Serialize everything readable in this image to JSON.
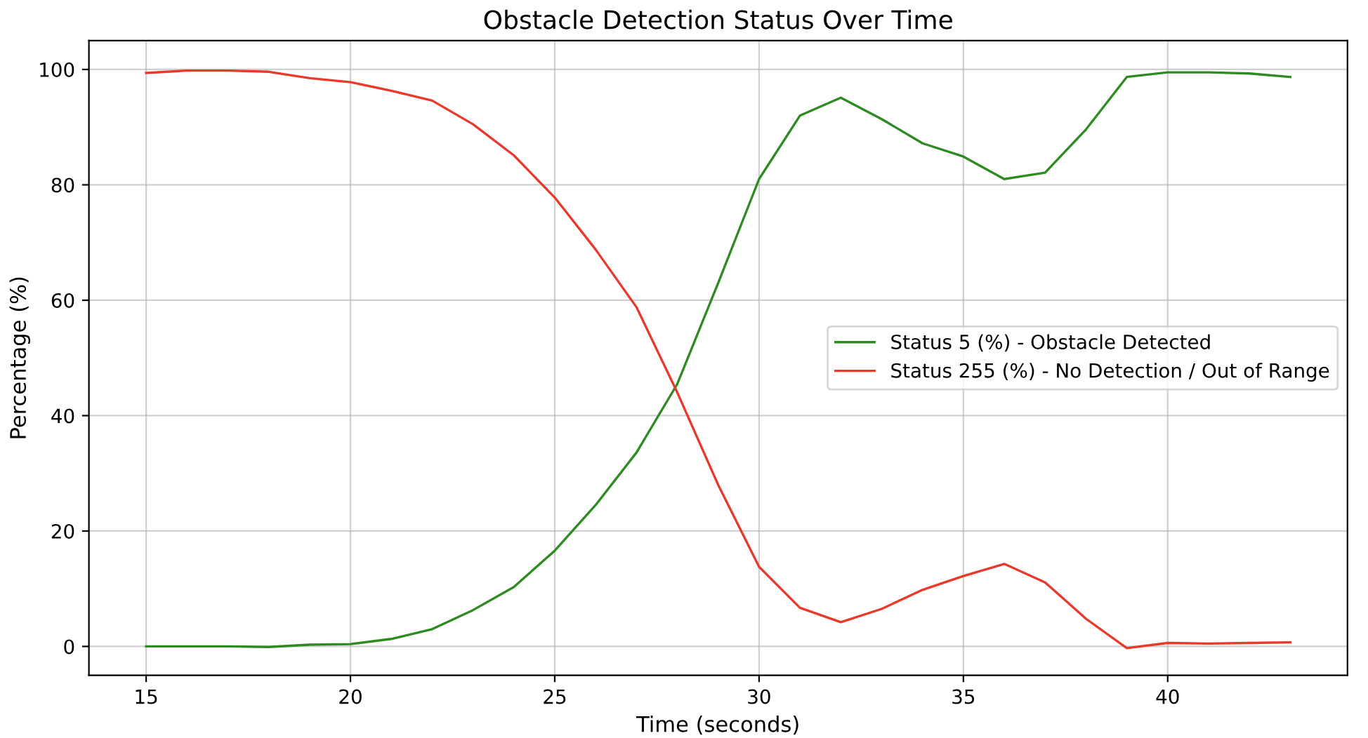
{
  "chart_data": {
    "type": "line",
    "title": "Obstacle Detection Status Over Time",
    "xlabel": "Time (seconds)",
    "ylabel": "Percentage (%)",
    "x": [
      15,
      16,
      17,
      18,
      19,
      20,
      21,
      22,
      23,
      24,
      25,
      26,
      27,
      28,
      29,
      30,
      31,
      32,
      33,
      34,
      35,
      36,
      37,
      38,
      39,
      40,
      41,
      42,
      43
    ],
    "series": [
      {
        "name": "Status 5 (%) - Obstacle Detected",
        "color": "#2e8b22",
        "values": [
          0,
          0,
          0,
          -0.1,
          0.3,
          0.4,
          1.3,
          3,
          6.3,
          10.3,
          16.6,
          24.5,
          33.6,
          45.5,
          63,
          81,
          92,
          95.1,
          91.4,
          87.2,
          84.9,
          81,
          82.1,
          89.6,
          98.7,
          99.5,
          99.5,
          99.3,
          98.7
        ]
      },
      {
        "name": "Status 255 (%) - No Detection / Out of Range",
        "color": "#e8392b",
        "values": [
          99.4,
          99.8,
          99.8,
          99.6,
          98.5,
          97.8,
          96.3,
          94.6,
          90.5,
          85.1,
          77.8,
          68.8,
          58.8,
          44,
          28,
          13.8,
          6.7,
          4.2,
          6.5,
          9.8,
          12.2,
          14.3,
          11.1,
          4.8,
          -0.3,
          0.6,
          0.5,
          0.6,
          0.7
        ]
      }
    ],
    "xlim": [
      13.6,
      44.4
    ],
    "ylim": [
      -5,
      105
    ],
    "xticks": [
      15,
      20,
      25,
      30,
      35,
      40
    ],
    "yticks": [
      0,
      20,
      40,
      60,
      80,
      100
    ],
    "grid": true,
    "legend": "right"
  }
}
